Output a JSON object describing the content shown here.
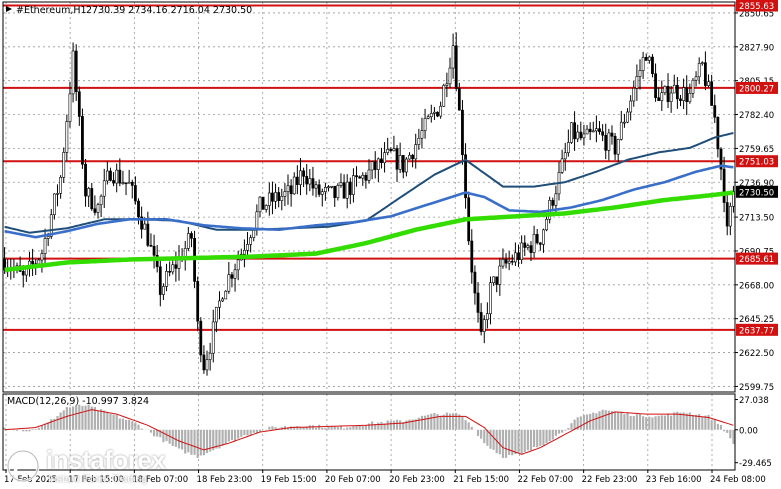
{
  "header": {
    "symbol": "#Ethereum,H1",
    "ohlc": "2730.39 2734.16 2716.04 2730.50"
  },
  "colors": {
    "support_resistance": "#d11010",
    "ma_fast": "#1f4e79",
    "ma_mid": "#3a6fc9",
    "ma_slow": "#33dd00",
    "candles": "#000000",
    "macd_hist": "#b0b0b0",
    "macd_signal": "#d11010",
    "price_label": "#000000"
  },
  "chart_data": [
    {
      "type": "candlestick",
      "title": "#Ethereum,H1",
      "y_ticks": [
        "2850.65",
        "2827.90",
        "2805.15",
        "2782.40",
        "2759.65",
        "2736.90",
        "2713.50",
        "2690.75",
        "2668.00",
        "2645.25",
        "2622.50",
        "2599.75"
      ],
      "x_ticks": [
        "17 Feb 2025",
        "17 Feb 15:00",
        "18 Feb 07:00",
        "18 Feb 23:00",
        "19 Feb 15:00",
        "20 Feb 07:00",
        "20 Feb 23:00",
        "21 Feb 15:00",
        "22 Feb 07:00",
        "22 Feb 23:00",
        "23 Feb 16:00",
        "24 Feb 08:00"
      ],
      "ylim": [
        2596,
        2858
      ],
      "grid": true,
      "current_price": "2730.50",
      "levels": [
        {
          "label": "2855.63",
          "value": 2855.63
        },
        {
          "label": "2800.27",
          "value": 2800.27
        },
        {
          "label": "2751.03",
          "value": 2751.03
        },
        {
          "label": "2685.61",
          "value": 2685.61
        },
        {
          "label": "2637.77",
          "value": 2637.77
        }
      ],
      "close_path": [
        [
          0,
          2685
        ],
        [
          6,
          2672
        ],
        [
          12,
          2690
        ],
        [
          18,
          2740
        ],
        [
          22,
          2820
        ],
        [
          26,
          2730
        ],
        [
          30,
          2720
        ],
        [
          34,
          2745
        ],
        [
          40,
          2735
        ],
        [
          46,
          2700
        ],
        [
          50,
          2665
        ],
        [
          56,
          2685
        ],
        [
          60,
          2700
        ],
        [
          62,
          2640
        ],
        [
          64,
          2615
        ],
        [
          66,
          2628
        ],
        [
          70,
          2665
        ],
        [
          76,
          2690
        ],
        [
          82,
          2720
        ],
        [
          86,
          2725
        ],
        [
          92,
          2730
        ],
        [
          96,
          2745
        ],
        [
          100,
          2730
        ],
        [
          106,
          2728
        ],
        [
          112,
          2735
        ],
        [
          118,
          2745
        ],
        [
          124,
          2755
        ],
        [
          128,
          2748
        ],
        [
          134,
          2770
        ],
        [
          140,
          2790
        ],
        [
          144,
          2830
        ],
        [
          147,
          2760
        ],
        [
          149,
          2700
        ],
        [
          151,
          2660
        ],
        [
          153,
          2630
        ],
        [
          156,
          2665
        ],
        [
          160,
          2680
        ],
        [
          166,
          2690
        ],
        [
          172,
          2700
        ],
        [
          175,
          2720
        ],
        [
          178,
          2740
        ],
        [
          182,
          2770
        ],
        [
          186,
          2765
        ],
        [
          190,
          2770
        ],
        [
          196,
          2760
        ],
        [
          202,
          2800
        ],
        [
          206,
          2825
        ],
        [
          210,
          2790
        ],
        [
          214,
          2800
        ],
        [
          220,
          2795
        ],
        [
          224,
          2815
        ],
        [
          228,
          2780
        ],
        [
          231,
          2730
        ],
        [
          232,
          2702
        ],
        [
          234,
          2730
        ]
      ],
      "series": [
        {
          "name": "",
          "color_key": "ma_fast",
          "points": [
            [
              0,
              2707
            ],
            [
              8,
              2703
            ],
            [
              20,
              2706
            ],
            [
              32,
              2712
            ],
            [
              44,
              2712
            ],
            [
              56,
              2711
            ],
            [
              68,
              2705
            ],
            [
              80,
              2705
            ],
            [
              92,
              2706
            ],
            [
              104,
              2707
            ],
            [
              116,
              2711
            ],
            [
              128,
              2728
            ],
            [
              138,
              2742
            ],
            [
              148,
              2752
            ],
            [
              152,
              2746
            ],
            [
              160,
              2734
            ],
            [
              170,
              2734
            ],
            [
              180,
              2737
            ],
            [
              190,
              2744
            ],
            [
              200,
              2752
            ],
            [
              210,
              2757
            ],
            [
              220,
              2760
            ],
            [
              228,
              2767
            ],
            [
              234,
              2770
            ]
          ]
        },
        {
          "name": "",
          "color_key": "ma_mid",
          "points": [
            [
              0,
              2704
            ],
            [
              10,
              2700
            ],
            [
              20,
              2704
            ],
            [
              30,
              2709
            ],
            [
              40,
              2712
            ],
            [
              52,
              2712
            ],
            [
              64,
              2708
            ],
            [
              76,
              2706
            ],
            [
              88,
              2705
            ],
            [
              100,
              2708
            ],
            [
              112,
              2710
            ],
            [
              124,
              2714
            ],
            [
              136,
              2722
            ],
            [
              148,
              2730
            ],
            [
              154,
              2727
            ],
            [
              162,
              2718
            ],
            [
              172,
              2717
            ],
            [
              182,
              2720
            ],
            [
              192,
              2725
            ],
            [
              202,
              2732
            ],
            [
              212,
              2737
            ],
            [
              222,
              2744
            ],
            [
              230,
              2748
            ],
            [
              234,
              2747
            ]
          ]
        },
        {
          "name": "",
          "color_key": "ma_slow",
          "points": [
            [
              0,
              2678
            ],
            [
              20,
              2683
            ],
            [
              40,
              2685
            ],
            [
              60,
              2686
            ],
            [
              80,
              2687
            ],
            [
              100,
              2689
            ],
            [
              116,
              2696
            ],
            [
              132,
              2705
            ],
            [
              148,
              2712
            ],
            [
              164,
              2714
            ],
            [
              180,
              2716
            ],
            [
              196,
              2720
            ],
            [
              212,
              2725
            ],
            [
              226,
              2728
            ],
            [
              234,
              2730
            ]
          ]
        }
      ]
    },
    {
      "type": "bar",
      "title": "MACD(12,26,9)",
      "header": "MACD(12,26,9) -10.997 3.824",
      "y_ticks": [
        "27.038",
        "0.00",
        "-29.465"
      ],
      "ylim": [
        -36,
        32
      ],
      "hist_path": [
        [
          0,
          2
        ],
        [
          8,
          -1
        ],
        [
          14,
          6
        ],
        [
          20,
          20
        ],
        [
          26,
          22
        ],
        [
          34,
          14
        ],
        [
          42,
          6
        ],
        [
          50,
          -8
        ],
        [
          56,
          -18
        ],
        [
          62,
          -24
        ],
        [
          70,
          -14
        ],
        [
          78,
          -4
        ],
        [
          86,
          2
        ],
        [
          96,
          4
        ],
        [
          108,
          2
        ],
        [
          118,
          6
        ],
        [
          128,
          8
        ],
        [
          138,
          14
        ],
        [
          146,
          14
        ],
        [
          150,
          4
        ],
        [
          154,
          -12
        ],
        [
          160,
          -24
        ],
        [
          166,
          -22
        ],
        [
          172,
          -14
        ],
        [
          178,
          -4
        ],
        [
          184,
          10
        ],
        [
          192,
          18
        ],
        [
          200,
          14
        ],
        [
          210,
          12
        ],
        [
          218,
          16
        ],
        [
          226,
          12
        ],
        [
          230,
          4
        ],
        [
          234,
          -12
        ]
      ],
      "signal_path": [
        [
          0,
          0
        ],
        [
          10,
          2
        ],
        [
          20,
          12
        ],
        [
          28,
          18
        ],
        [
          36,
          14
        ],
        [
          46,
          4
        ],
        [
          56,
          -10
        ],
        [
          64,
          -18
        ],
        [
          72,
          -12
        ],
        [
          82,
          -2
        ],
        [
          92,
          2
        ],
        [
          104,
          3
        ],
        [
          116,
          4
        ],
        [
          128,
          6
        ],
        [
          140,
          12
        ],
        [
          148,
          12
        ],
        [
          154,
          2
        ],
        [
          160,
          -16
        ],
        [
          166,
          -22
        ],
        [
          172,
          -16
        ],
        [
          180,
          -4
        ],
        [
          188,
          8
        ],
        [
          196,
          16
        ],
        [
          206,
          14
        ],
        [
          216,
          14
        ],
        [
          226,
          11
        ],
        [
          234,
          4
        ]
      ]
    }
  ],
  "watermark": {
    "brand": "instaforex",
    "tagline": "Instant Forex Trading"
  }
}
